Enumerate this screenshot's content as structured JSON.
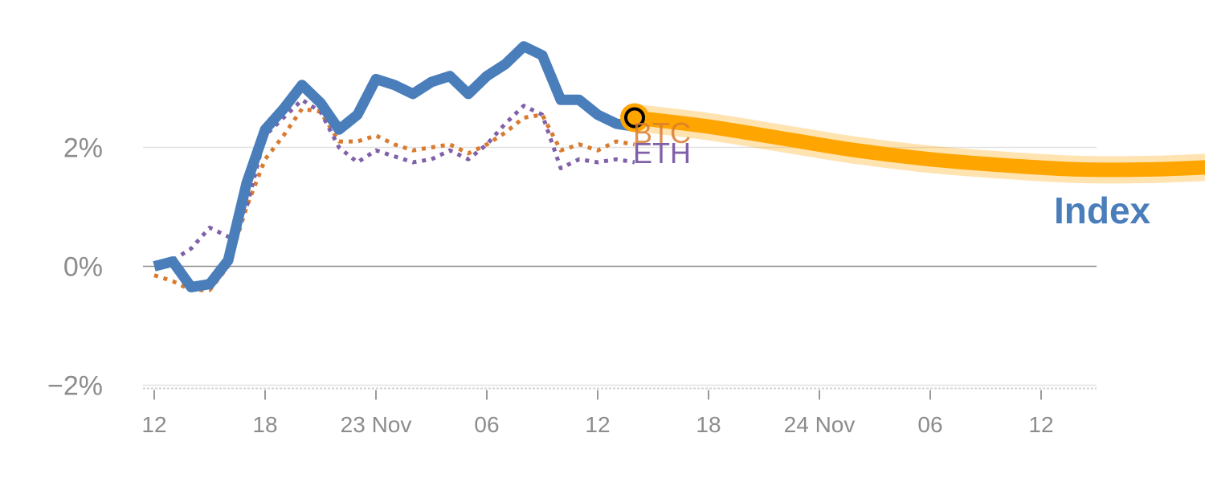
{
  "chart_data": {
    "type": "line",
    "x_tick_labels": [
      "12",
      "18",
      "23 Nov",
      "06",
      "12",
      "18",
      "24 Nov",
      "06",
      "12"
    ],
    "y_tick_labels": [
      "2%",
      "0%",
      "−2%"
    ],
    "ylim": [
      -2,
      3.7
    ],
    "grid": "horizontal",
    "series": [
      {
        "name": "Index",
        "color": "#4a7ebb",
        "style": "solid",
        "x": [
          0,
          1,
          2,
          3,
          4,
          5,
          6,
          7,
          8,
          9,
          10,
          11,
          12,
          13,
          14,
          15,
          16,
          17,
          18,
          19,
          20,
          21,
          22,
          23,
          24,
          25,
          26
        ],
        "values": [
          0.0,
          0.08,
          -0.35,
          -0.3,
          0.1,
          1.4,
          2.3,
          2.65,
          3.05,
          2.75,
          2.3,
          2.55,
          3.15,
          3.05,
          2.9,
          3.1,
          3.2,
          2.9,
          3.2,
          3.4,
          3.7,
          3.55,
          2.8,
          2.8,
          2.55,
          2.4,
          2.35
        ]
      },
      {
        "name": "BTC",
        "color": "#d97b2f",
        "style": "dotted",
        "x": [
          0,
          1,
          2,
          3,
          4,
          5,
          6,
          7,
          8,
          9,
          10,
          11,
          12,
          13,
          14,
          15,
          16,
          17,
          18,
          19,
          20,
          21,
          22,
          23,
          24,
          25,
          26
        ],
        "values": [
          -0.15,
          -0.25,
          -0.4,
          -0.4,
          0.0,
          1.0,
          1.8,
          2.2,
          2.65,
          2.6,
          2.1,
          2.1,
          2.2,
          2.05,
          1.95,
          2.0,
          2.05,
          1.9,
          2.05,
          2.25,
          2.5,
          2.55,
          1.95,
          2.05,
          1.95,
          2.1,
          2.05
        ]
      },
      {
        "name": "ETH",
        "color": "#8060a8",
        "style": "dotted",
        "x": [
          0,
          1,
          2,
          3,
          4,
          5,
          6,
          7,
          8,
          9,
          10,
          11,
          12,
          13,
          14,
          15,
          16,
          17,
          18,
          19,
          20,
          21,
          22,
          23,
          24,
          25,
          26
        ],
        "values": [
          0.05,
          0.1,
          0.3,
          0.65,
          0.5,
          1.0,
          2.2,
          2.5,
          2.8,
          2.6,
          2.0,
          1.75,
          1.95,
          1.85,
          1.75,
          1.8,
          1.95,
          1.8,
          2.05,
          2.4,
          2.7,
          2.55,
          1.65,
          1.8,
          1.75,
          1.8,
          1.75
        ]
      },
      {
        "name": "Index-forecast",
        "color": "#ffa500",
        "style": "solid-thick",
        "x": [
          26,
          30,
          34,
          38,
          42,
          46,
          50,
          54,
          58
        ],
        "values": [
          2.5,
          2.35,
          2.15,
          1.95,
          1.8,
          1.7,
          1.63,
          1.63,
          1.68
        ]
      }
    ],
    "marker": {
      "x": 26,
      "y": 2.5,
      "color": "#ffa500"
    }
  },
  "labels": {
    "index": "Index",
    "btc": "BTC",
    "eth": "ETH"
  }
}
